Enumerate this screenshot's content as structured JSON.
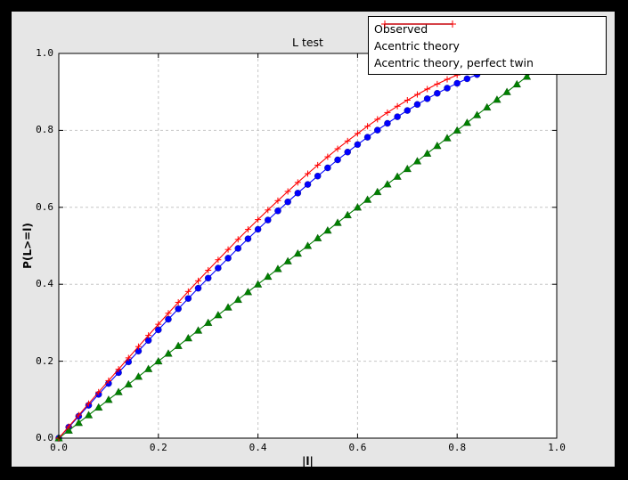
{
  "window": {
    "frame_color": "#000000",
    "canvas_color": "#e6e6e6"
  },
  "chart_data": {
    "type": "line",
    "title": "L test",
    "xlabel": "|l|",
    "ylabel": "P(L>=l)",
    "xlim": [
      0.0,
      1.0
    ],
    "ylim": [
      0.0,
      1.0
    ],
    "x_tick_labels": [
      "0.0",
      "0.2",
      "0.4",
      "0.6",
      "0.8",
      "1.0"
    ],
    "y_tick_labels": [
      "0.0",
      "0.2",
      "0.4",
      "0.6",
      "0.8",
      "1.0"
    ],
    "grid": "dashed, light gray, at 0.2 intervals",
    "grid_color": "#c6c6c6",
    "plot_bg": "#ffffff",
    "legend_position": "upper right, overlapping top-right of axes",
    "series": [
      {
        "name": "Observed",
        "color": "#0000ff",
        "marker": "circle",
        "x": [
          0,
          0.02,
          0.04,
          0.06,
          0.08,
          0.1,
          0.12,
          0.14,
          0.16,
          0.18,
          0.2,
          0.22,
          0.24,
          0.26,
          0.28,
          0.3,
          0.32,
          0.34,
          0.36,
          0.38,
          0.4,
          0.42,
          0.44,
          0.46,
          0.48,
          0.5,
          0.52,
          0.54,
          0.56,
          0.58,
          0.6,
          0.62,
          0.64,
          0.66,
          0.68,
          0.7,
          0.72,
          0.74,
          0.76,
          0.78,
          0.8,
          0.82,
          0.84,
          0.86
        ],
        "y": [
          0,
          0.0285,
          0.057,
          0.0854,
          0.1138,
          0.1421,
          0.1703,
          0.1983,
          0.2263,
          0.254,
          0.2816,
          0.309,
          0.3361,
          0.363,
          0.3897,
          0.416,
          0.4421,
          0.4678,
          0.4932,
          0.5182,
          0.5428,
          0.567,
          0.5908,
          0.6141,
          0.637,
          0.6594,
          0.6812,
          0.7026,
          0.7234,
          0.7436,
          0.7632,
          0.7822,
          0.8006,
          0.8183,
          0.8354,
          0.8517,
          0.8674,
          0.8823,
          0.8964,
          0.9098,
          0.9224,
          0.9342,
          0.9451,
          0.9552
        ]
      },
      {
        "name": "Acentric theory",
        "color": "#008000",
        "marker": "triangle-up",
        "x": [
          0,
          0.02,
          0.04,
          0.06,
          0.08,
          0.1,
          0.12,
          0.14,
          0.16,
          0.18,
          0.2,
          0.22,
          0.24,
          0.26,
          0.28,
          0.3,
          0.32,
          0.34,
          0.36,
          0.38,
          0.4,
          0.42,
          0.44,
          0.46,
          0.48,
          0.5,
          0.52,
          0.54,
          0.56,
          0.58,
          0.6,
          0.62,
          0.64,
          0.66,
          0.68,
          0.7,
          0.72,
          0.74,
          0.76,
          0.78,
          0.8,
          0.82,
          0.84,
          0.86,
          0.88,
          0.9,
          0.92,
          0.94,
          0.96
        ],
        "y": [
          0,
          0.02,
          0.04,
          0.06,
          0.08,
          0.1,
          0.12,
          0.14,
          0.16,
          0.18,
          0.2,
          0.22,
          0.24,
          0.26,
          0.28,
          0.3,
          0.32,
          0.34,
          0.36,
          0.38,
          0.4,
          0.42,
          0.44,
          0.46,
          0.48,
          0.5,
          0.52,
          0.54,
          0.56,
          0.58,
          0.6,
          0.62,
          0.64,
          0.66,
          0.68,
          0.7,
          0.72,
          0.74,
          0.76,
          0.78,
          0.8,
          0.82,
          0.84,
          0.86,
          0.88,
          0.9,
          0.92,
          0.94,
          0.96
        ]
      },
      {
        "name": "Acentric theory, perfect twin",
        "color": "#ff0000",
        "marker": "plus",
        "x": [
          0,
          0.02,
          0.04,
          0.06,
          0.08,
          0.1,
          0.12,
          0.14,
          0.16,
          0.18,
          0.2,
          0.22,
          0.24,
          0.26,
          0.28,
          0.3,
          0.32,
          0.34,
          0.36,
          0.38,
          0.4,
          0.42,
          0.44,
          0.46,
          0.48,
          0.5,
          0.52,
          0.54,
          0.56,
          0.58,
          0.6,
          0.62,
          0.64,
          0.66,
          0.68,
          0.7,
          0.72,
          0.74,
          0.76,
          0.78,
          0.8,
          0.82,
          0.84,
          0.86
        ],
        "y": [
          0,
          0.03,
          0.06,
          0.0899,
          0.1197,
          0.1495,
          0.1791,
          0.2086,
          0.238,
          0.2671,
          0.296,
          0.3247,
          0.3531,
          0.3812,
          0.409,
          0.4365,
          0.4636,
          0.4903,
          0.5167,
          0.5426,
          0.568,
          0.593,
          0.6174,
          0.6413,
          0.6647,
          0.6875,
          0.7097,
          0.7313,
          0.7522,
          0.7724,
          0.792,
          0.8108,
          0.8289,
          0.8463,
          0.8628,
          0.8785,
          0.8934,
          0.9074,
          0.9205,
          0.9327,
          0.944,
          0.9543,
          0.9636,
          0.972
        ]
      }
    ],
    "legend_entries": [
      "Observed",
      "Acentric theory",
      "Acentric theory, perfect twin"
    ]
  }
}
